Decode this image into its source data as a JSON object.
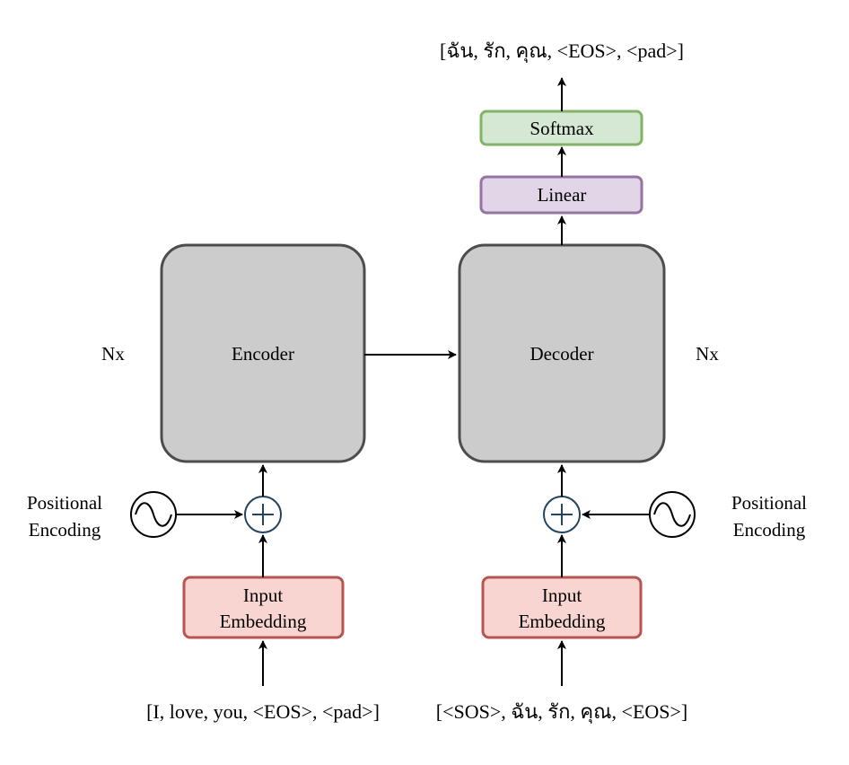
{
  "encoder": {
    "label": "Encoder",
    "repeat": "Nx",
    "input_sequence": "[I, love, you, <EOS>, <pad>]",
    "embedding_label_line1": "Input",
    "embedding_label_line2": "Embedding",
    "positional_label_line1": "Positional",
    "positional_label_line2": "Encoding"
  },
  "decoder": {
    "label": "Decoder",
    "repeat": "Nx",
    "input_sequence": "[<SOS>, ฉัน, รัก, คุณ, <EOS>]",
    "embedding_label_line1": "Input",
    "embedding_label_line2": "Embedding",
    "positional_label_line1": "Positional",
    "positional_label_line2": "Encoding"
  },
  "output_head": {
    "linear_label": "Linear",
    "softmax_label": "Softmax",
    "output_sequence": "[ฉัน, รัก, คุณ, <EOS>, <pad>]"
  },
  "colors": {
    "block_fill": "#cccccc",
    "block_stroke": "#4d4d4d",
    "embedding_fill": "#f8d5d1",
    "embedding_stroke": "#b85450",
    "linear_fill": "#e1d5e7",
    "linear_stroke": "#9673a6",
    "softmax_fill": "#d5e8d4",
    "softmax_stroke": "#82b366",
    "adder_stroke": "#23445d"
  }
}
